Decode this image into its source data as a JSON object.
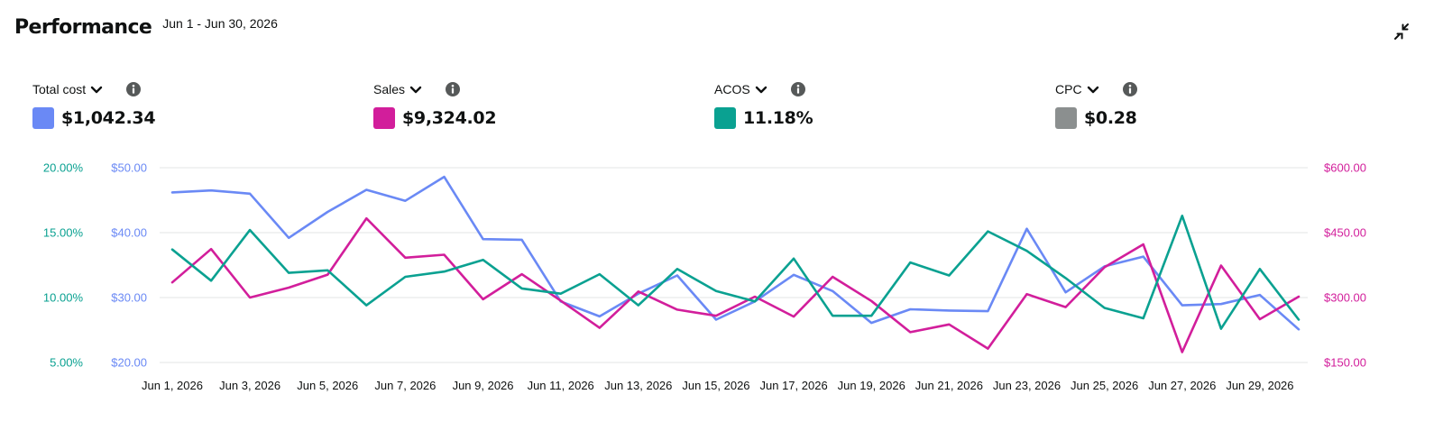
{
  "header": {
    "title": "Performance",
    "date_range": "Jun 1 - Jun 30, 2026",
    "collapse_icon": "collapse-arrows-icon"
  },
  "metrics": [
    {
      "label": "Total cost",
      "value": "$1,042.34",
      "color": "#6a89f5"
    },
    {
      "label": "Sales",
      "value": "$9,324.02",
      "color": "#d21e9b"
    },
    {
      "label": "ACOS",
      "value": "11.18%",
      "color": "#0aa191"
    },
    {
      "label": "CPC",
      "value": "$0.28",
      "color": "#8b8f8f"
    }
  ],
  "chart_data": {
    "type": "line",
    "x": [
      "Jun 1, 2026",
      "Jun 2, 2026",
      "Jun 3, 2026",
      "Jun 4, 2026",
      "Jun 5, 2026",
      "Jun 6, 2026",
      "Jun 7, 2026",
      "Jun 8, 2026",
      "Jun 9, 2026",
      "Jun 10, 2026",
      "Jun 11, 2026",
      "Jun 12, 2026",
      "Jun 13, 2026",
      "Jun 14, 2026",
      "Jun 15, 2026",
      "Jun 16, 2026",
      "Jun 17, 2026",
      "Jun 18, 2026",
      "Jun 19, 2026",
      "Jun 20, 2026",
      "Jun 21, 2026",
      "Jun 22, 2026",
      "Jun 23, 2026",
      "Jun 24, 2026",
      "Jun 25, 2026",
      "Jun 26, 2026",
      "Jun 27, 2026",
      "Jun 28, 2026",
      "Jun 29, 2026",
      "Jun 30, 2026"
    ],
    "x_tick_labels": [
      "Jun 1, 2026",
      "Jun 3, 2026",
      "Jun 5, 2026",
      "Jun 7, 2026",
      "Jun 9, 2026",
      "Jun 11, 2026",
      "Jun 13, 2026",
      "Jun 15, 2026",
      "Jun 17, 2026",
      "Jun 19, 2026",
      "Jun 21, 2026",
      "Jun 23, 2026",
      "Jun 25, 2026",
      "Jun 27, 2026",
      "Jun 29, 2026"
    ],
    "axes": {
      "acos": {
        "ticks": [
          "20.00%",
          "15.00%",
          "10.00%",
          "5.00%"
        ],
        "range": [
          5,
          20
        ],
        "color": "#0aa191"
      },
      "cost": {
        "ticks": [
          "$50.00",
          "$40.00",
          "$30.00",
          "$20.00"
        ],
        "range": [
          20,
          50
        ],
        "color": "#6a89f5"
      },
      "sales": {
        "ticks": [
          "$600.00",
          "$450.00",
          "$300.00",
          "$150.00"
        ],
        "range": [
          150,
          600
        ],
        "color": "#d21e9b"
      }
    },
    "grid": true,
    "series": [
      {
        "name": "Total cost",
        "axis": "cost",
        "color": "#6a89f5",
        "values": [
          46.2,
          46.5,
          46.0,
          39.2,
          43.2,
          46.6,
          44.9,
          48.6,
          39.0,
          38.9,
          29.4,
          27.1,
          30.6,
          33.4,
          26.6,
          29.4,
          33.5,
          31.0,
          26.1,
          28.2,
          28.0,
          27.9,
          40.6,
          30.8,
          34.8,
          36.3,
          28.8,
          29.0,
          30.4,
          25.1
        ]
      },
      {
        "name": "Sales",
        "axis": "sales",
        "color": "#d21e9b",
        "values": [
          335,
          412,
          300,
          323,
          353,
          483,
          392,
          399,
          296,
          354,
          293,
          230,
          314,
          272,
          258,
          302,
          256,
          348,
          292,
          220,
          238,
          182,
          308,
          278,
          370,
          423,
          174,
          374,
          250,
          302
        ]
      },
      {
        "name": "ACOS",
        "axis": "acos",
        "color": "#0aa191",
        "values": [
          13.7,
          11.3,
          15.2,
          11.9,
          12.1,
          9.4,
          11.6,
          12.0,
          12.9,
          10.7,
          10.3,
          11.8,
          9.4,
          12.2,
          10.5,
          9.7,
          13.0,
          8.6,
          8.6,
          12.7,
          11.7,
          15.1,
          13.6,
          11.5,
          9.2,
          8.4,
          16.3,
          7.6,
          12.2,
          8.3
        ]
      }
    ]
  }
}
